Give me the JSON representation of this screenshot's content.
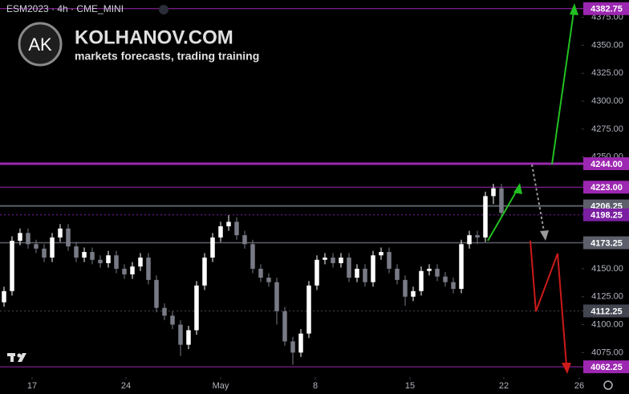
{
  "header": {
    "symbol": "ESM2023 · 4h · CME_MINI",
    "logo": "AK",
    "site": "KOLHANOV.COM",
    "tagline": "markets forecasts, trading training"
  },
  "chart_data": {
    "type": "candlestick",
    "xlim": [
      -0.5,
      72
    ],
    "xticks": [
      {
        "value": 3.5,
        "label": "17"
      },
      {
        "value": 15.2,
        "label": "24"
      },
      {
        "value": 27,
        "label": "May"
      },
      {
        "value": 38.8,
        "label": "8"
      },
      {
        "value": 50.6,
        "label": "15"
      },
      {
        "value": 62.3,
        "label": "22"
      },
      {
        "value": 71.7,
        "label": "26"
      }
    ],
    "ylim": [
      4053,
      4390.5
    ],
    "yticks": [
      {
        "value": 4075,
        "label": "4075.00"
      },
      {
        "value": 4100,
        "label": "4100.00"
      },
      {
        "value": 4125,
        "label": "4125.00"
      },
      {
        "value": 4150,
        "label": "4150.00"
      },
      {
        "value": 4175,
        "label": "4175.00"
      },
      {
        "value": 4200,
        "label": "4200.00"
      },
      {
        "value": 4225,
        "label": "4225.00"
      },
      {
        "value": 4250,
        "label": "4250.00"
      },
      {
        "value": 4275,
        "label": "4275.00"
      },
      {
        "value": 4300,
        "label": "4300.00"
      },
      {
        "value": 4325,
        "label": "4325.00"
      },
      {
        "value": 4350,
        "label": "4350.00"
      },
      {
        "value": 4375,
        "label": "4375.00"
      }
    ],
    "grid": false,
    "up_color": "#ffffff",
    "down_color": "#787b86",
    "series": {
      "open": [
        4120,
        4130,
        4175,
        4182,
        4172,
        4168,
        4160,
        4178,
        4186,
        4170,
        4160,
        4165,
        4158,
        4155,
        4162,
        4150,
        4145,
        4152,
        4160,
        4140,
        4115,
        4108,
        4100,
        4082,
        4095,
        4135,
        4160,
        4178,
        4188,
        4192,
        4180,
        4172,
        4150,
        4142,
        4138,
        4112,
        4085,
        4075,
        4092,
        4135,
        4158,
        4160,
        4155,
        4160,
        4142,
        4150,
        4138,
        4162,
        4165,
        4150,
        4140,
        4125,
        4130,
        4148,
        4150,
        4143,
        4138,
        4132,
        4172,
        4180,
        4178,
        4215,
        4222
      ],
      "high": [
        4134,
        4179,
        4186,
        4186,
        4176,
        4172,
        4182,
        4190,
        4190,
        4174,
        4169,
        4169,
        4162,
        4166,
        4166,
        4154,
        4156,
        4164,
        4164,
        4144,
        4119,
        4112,
        4104,
        4099,
        4139,
        4164,
        4182,
        4192,
        4198,
        4196,
        4184,
        4176,
        4154,
        4146,
        4142,
        4116,
        4089,
        4096,
        4139,
        4162,
        4164,
        4164,
        4164,
        4164,
        4154,
        4154,
        4166,
        4169,
        4169,
        4154,
        4144,
        4134,
        4152,
        4154,
        4154,
        4147,
        4142,
        4176,
        4184,
        4184,
        4219,
        4226,
        4226
      ],
      "low": [
        4116,
        4126,
        4171,
        4168,
        4164,
        4156,
        4156,
        4174,
        4166,
        4156,
        4156,
        4154,
        4151,
        4151,
        4146,
        4141,
        4141,
        4148,
        4136,
        4111,
        4104,
        4096,
        4072,
        4078,
        4091,
        4131,
        4156,
        4174,
        4184,
        4176,
        4168,
        4146,
        4138,
        4134,
        4100,
        4081,
        4064,
        4071,
        4088,
        4131,
        4154,
        4151,
        4151,
        4138,
        4138,
        4134,
        4134,
        4158,
        4146,
        4136,
        4117,
        4121,
        4126,
        4144,
        4139,
        4134,
        4128,
        4128,
        4168,
        4172,
        4174,
        4208,
        4196
      ],
      "close": [
        4130,
        4175,
        4182,
        4172,
        4168,
        4160,
        4178,
        4186,
        4170,
        4160,
        4165,
        4158,
        4155,
        4162,
        4150,
        4145,
        4152,
        4160,
        4140,
        4115,
        4108,
        4100,
        4082,
        4095,
        4135,
        4160,
        4178,
        4188,
        4192,
        4180,
        4172,
        4150,
        4142,
        4138,
        4112,
        4085,
        4075,
        4092,
        4135,
        4158,
        4160,
        4155,
        4160,
        4142,
        4150,
        4138,
        4162,
        4165,
        4150,
        4140,
        4125,
        4130,
        4148,
        4150,
        4143,
        4138,
        4132,
        4172,
        4180,
        4178,
        4215,
        4222,
        4200
      ]
    },
    "levels": [
      {
        "value": 4382.75,
        "color": "#9c27b0",
        "width": 1,
        "dash": false
      },
      {
        "value": 4244,
        "label": "4244.00",
        "color": "#9c27b0",
        "width": 3,
        "dash": false
      },
      {
        "value": 4223,
        "label": "4223.00",
        "color": "#9c27b0",
        "width": 1,
        "dash": false
      },
      {
        "value": 4206.25,
        "color": "#5d606b",
        "width": 2,
        "dash": false
      },
      {
        "value": 4198.25,
        "color": "#7b1fa2",
        "width": 1,
        "dash": true
      },
      {
        "value": 4173.25,
        "color": "#5d606b",
        "width": 1.5,
        "dash": false
      },
      {
        "value": 4112.25,
        "color": "#434651",
        "width": 1,
        "dash": true
      },
      {
        "value": 4062.25,
        "color": "#9c27b0",
        "width": 1,
        "dash": false
      }
    ]
  }
}
